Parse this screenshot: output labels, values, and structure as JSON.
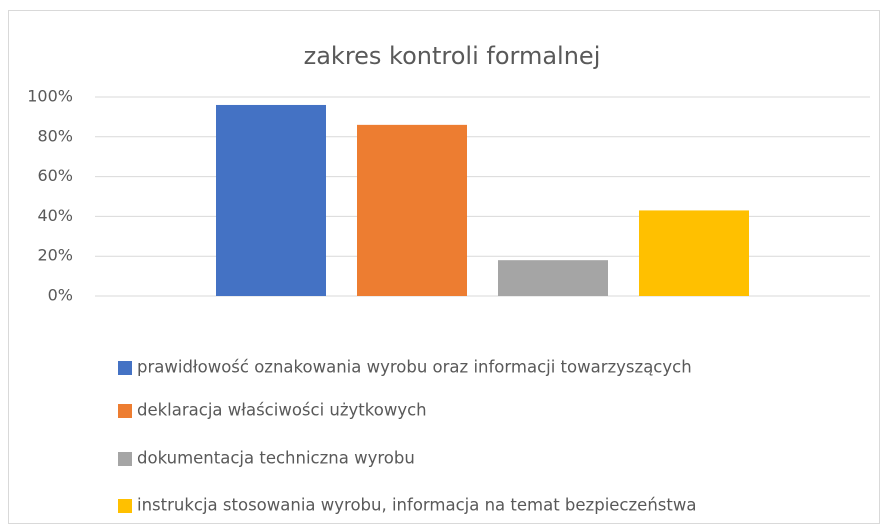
{
  "chart_data": {
    "type": "bar",
    "title": "zakres kontroli  formalnej",
    "categories": [
      null
    ],
    "series": [
      {
        "name": "prawidłowość oznakowania wyrobu oraz informacji towarzyszących",
        "color": "#4472c4",
        "values": [
          96
        ]
      },
      {
        "name": "deklaracja właściwości użytkowych",
        "color": "#ed7d31",
        "values": [
          86
        ]
      },
      {
        "name": "dokumentacja techniczna wyrobu",
        "color": "#a5a5a5",
        "values": [
          18
        ]
      },
      {
        "name": "instrukcja stosowania wyrobu, informacja na temat bezpieczeństwa",
        "color": "#ffc000",
        "values": [
          43
        ]
      }
    ],
    "ylim": [
      0,
      100
    ],
    "yticks": [
      {
        "value": 0,
        "label": "0%"
      },
      {
        "value": 20,
        "label": "20%"
      },
      {
        "value": 40,
        "label": "40%"
      },
      {
        "value": 60,
        "label": "60%"
      },
      {
        "value": 80,
        "label": "80%"
      },
      {
        "value": 100,
        "label": "100%"
      }
    ],
    "grid": true,
    "legend": "bottom"
  }
}
